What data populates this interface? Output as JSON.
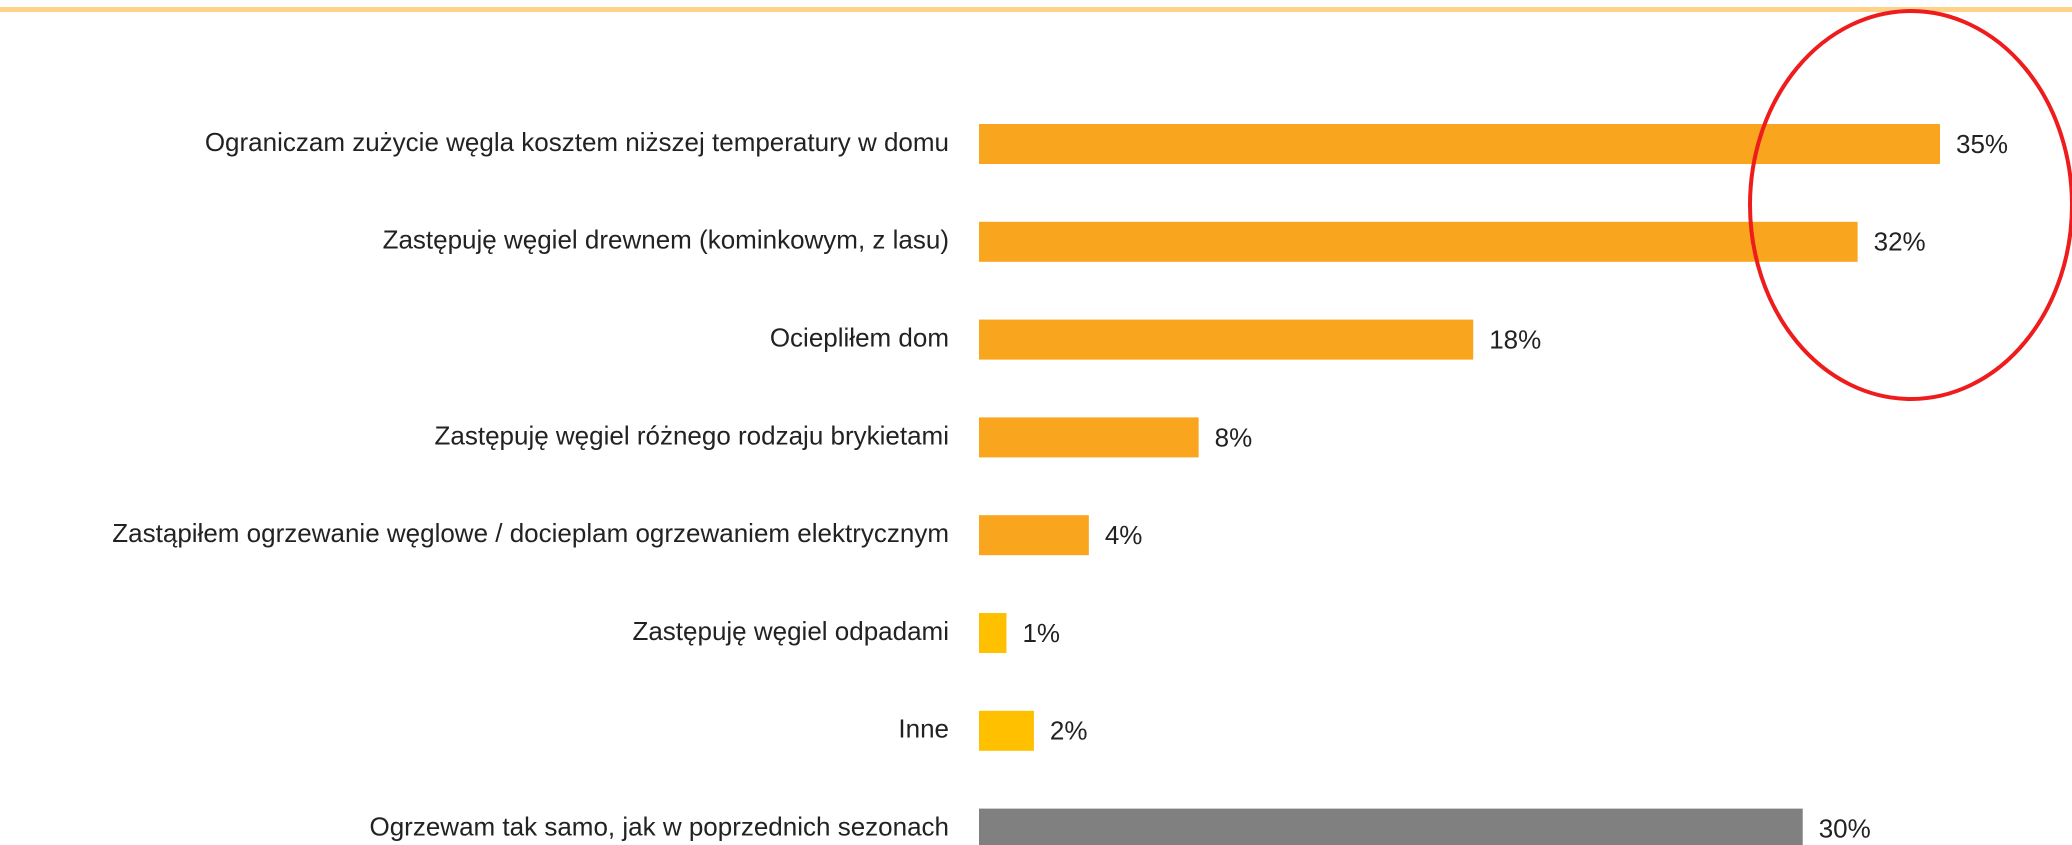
{
  "chart_data": {
    "type": "bar",
    "orientation": "horizontal",
    "categories": [
      "Ograniczam zużycie węgla kosztem niższej temperatury w domu",
      "Zastępuję węgiel drewnem (kominkowym, z lasu)",
      "Ociepliłem dom",
      "Zastępuję węgiel różnego rodzaju brykietami",
      "Zastąpiłem ogrzewanie węglowe / docieplam ogrzewaniem elektrycznym",
      "Zastępuję węgiel odpadami",
      "Inne",
      "Ogrzewam tak samo, jak w poprzednich sezonach"
    ],
    "values": [
      35,
      32,
      18,
      8,
      4,
      1,
      2,
      30
    ],
    "value_labels": [
      "35%",
      "32%",
      "18%",
      "8%",
      "4%",
      "1%",
      "2%",
      "30%"
    ],
    "colors": [
      "#f9a51e",
      "#f9a51e",
      "#f9a51e",
      "#f9a51e",
      "#f9a51e",
      "#ffc000",
      "#ffc000",
      "#808080"
    ],
    "xlim": [
      0,
      35
    ]
  }
}
